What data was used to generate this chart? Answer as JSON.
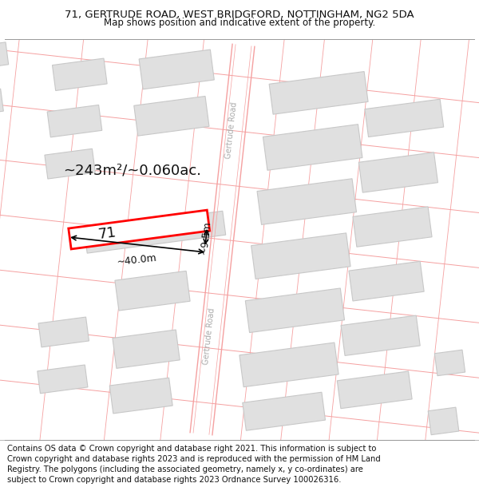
{
  "title_line1": "71, GERTRUDE ROAD, WEST BRIDGFORD, NOTTINGHAM, NG2 5DA",
  "title_line2": "Map shows position and indicative extent of the property.",
  "footer_text": "Contains OS data © Crown copyright and database right 2021. This information is subject to Crown copyright and database rights 2023 and is reproduced with the permission of HM Land Registry. The polygons (including the associated geometry, namely x, y co-ordinates) are subject to Crown copyright and database rights 2023 Ordnance Survey 100026316.",
  "bg_color": "#ffffff",
  "road_line_color": "#f5a0a0",
  "building_fill": "#e0e0e0",
  "building_edge": "#c8c8c8",
  "prop_fill": "#ffffff",
  "prop_edge": "#ff0000",
  "area_text": "~243m²/~0.060ac.",
  "dim_width": "~40.0m",
  "dim_height": "~9.5m",
  "label_71": "71",
  "road_label_color": "#aaaaaa",
  "title_fontsize": 9.5,
  "subtitle_fontsize": 8.5,
  "footer_fontsize": 7.2,
  "area_fontsize": 13,
  "dim_fontsize": 9,
  "prop_label_fontsize": 13
}
